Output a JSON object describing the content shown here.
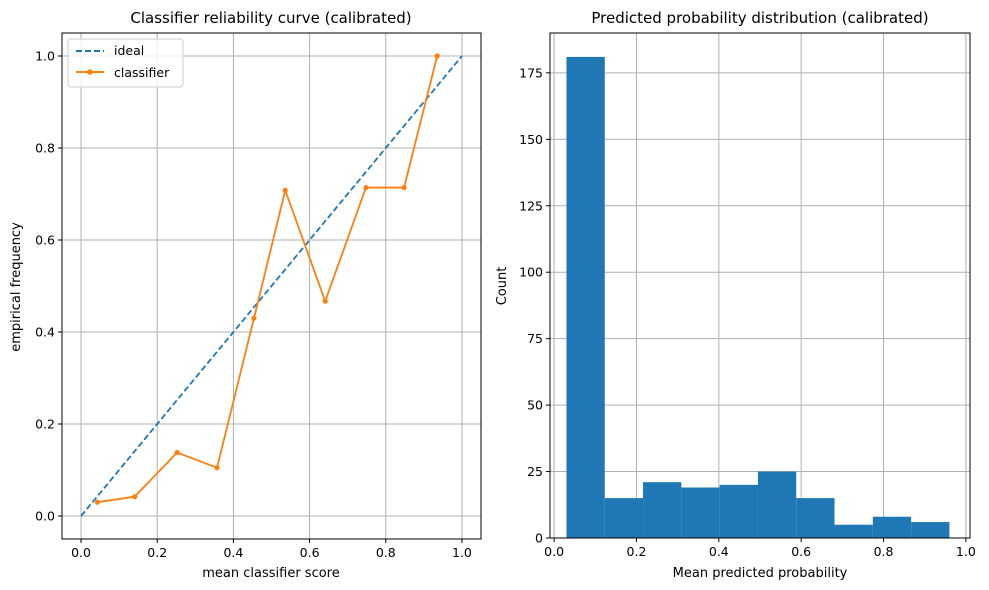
{
  "chart_data": [
    {
      "type": "line",
      "title": "Classifier reliability curve (calibrated)",
      "xlabel": "mean classifier score",
      "ylabel": "empirical frequency",
      "xlim": [
        -0.05,
        1.05
      ],
      "ylim": [
        -0.05,
        1.05
      ],
      "xticks": [
        0.0,
        0.2,
        0.4,
        0.6,
        0.8,
        1.0
      ],
      "xtick_labels": [
        "0.0",
        "0.2",
        "0.4",
        "0.6",
        "0.8",
        "1.0"
      ],
      "yticks": [
        0.0,
        0.2,
        0.4,
        0.6,
        0.8,
        1.0
      ],
      "ytick_labels": [
        "0.0",
        "0.2",
        "0.4",
        "0.6",
        "0.8",
        "1.0"
      ],
      "grid": true,
      "legend_position": "top-left",
      "series": [
        {
          "name": "ideal",
          "style": "dashed",
          "color": "#1f77b4",
          "x": [
            0.0,
            1.0
          ],
          "y": [
            0.0,
            1.0
          ]
        },
        {
          "name": "classifier",
          "style": "solid-markers",
          "color": "#ff7f0e",
          "x": [
            0.043,
            0.141,
            0.252,
            0.357,
            0.454,
            0.536,
            0.641,
            0.748,
            0.848,
            0.935
          ],
          "y": [
            0.03,
            0.042,
            0.138,
            0.105,
            0.43,
            0.708,
            0.467,
            0.714,
            0.714,
            1.0
          ]
        }
      ]
    },
    {
      "type": "bar",
      "title": "Predicted probability distribution (calibrated)",
      "xlabel": "Mean predicted probability",
      "ylabel": "Count",
      "xlim": [
        -0.01,
        1.01
      ],
      "ylim": [
        0,
        190
      ],
      "xticks": [
        0.0,
        0.2,
        0.4,
        0.6,
        0.8,
        1.0
      ],
      "xtick_labels": [
        "0.0",
        "0.2",
        "0.4",
        "0.6",
        "0.8",
        "1.0"
      ],
      "yticks": [
        0,
        25,
        50,
        75,
        100,
        125,
        150,
        175
      ],
      "ytick_labels": [
        "0",
        "25",
        "50",
        "75",
        "100",
        "125",
        "150",
        "175"
      ],
      "grid": true,
      "color": "#1f77b4",
      "bin_edges": [
        0.03,
        0.123,
        0.216,
        0.309,
        0.402,
        0.495,
        0.588,
        0.681,
        0.774,
        0.867,
        0.96
      ],
      "values": [
        181,
        15,
        21,
        19,
        20,
        25,
        15,
        5,
        8,
        6
      ]
    }
  ]
}
